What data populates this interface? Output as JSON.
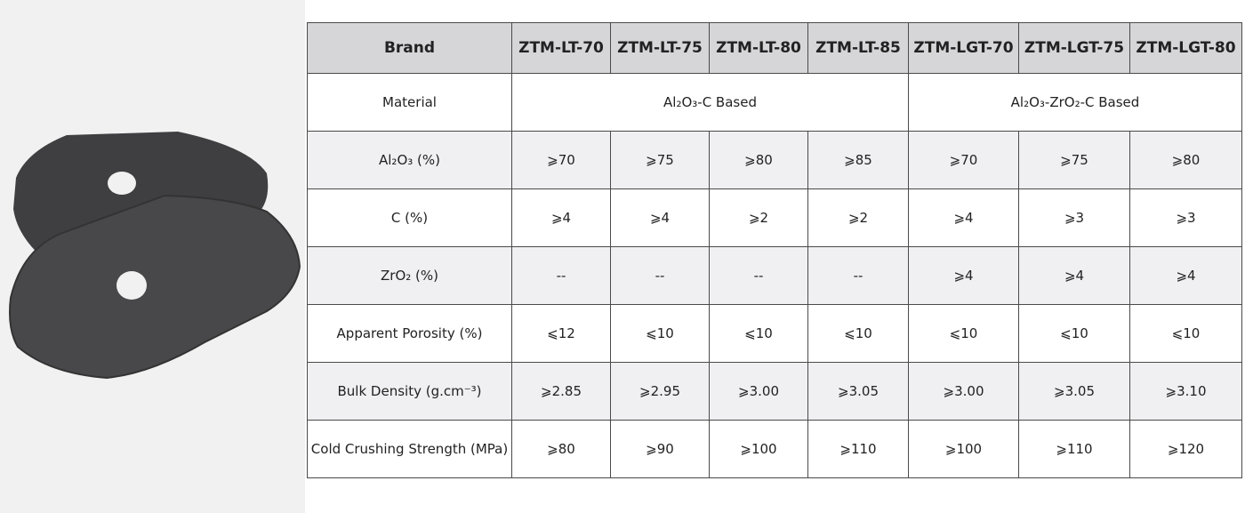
{
  "table": {
    "header": [
      "Brand",
      "ZTM-LT-70",
      "ZTM-LT-75",
      "ZTM-LT-80",
      "ZTM-LT-85",
      "ZTM-LGT-70",
      "ZTM-LGT-75",
      "ZTM-LGT-80"
    ],
    "rows": [
      {
        "label": "Material",
        "cells": [
          "Al₂O₃-C Based",
          "Al₂O₃-ZrO₂-C Based"
        ]
      },
      {
        "label": "Al₂O₃ (%)",
        "cells": [
          "⩾70",
          "⩾75",
          "⩾80",
          "⩾85",
          "⩾70",
          "⩾75",
          "⩾80"
        ]
      },
      {
        "label": "C (%)",
        "cells": [
          "⩾4",
          "⩾4",
          "⩾2",
          "⩾2",
          "⩾4",
          "⩾3",
          "⩾3"
        ]
      },
      {
        "label": "ZrO₂ (%)",
        "cells": [
          "--",
          "--",
          "--",
          "--",
          "⩾4",
          "⩾4",
          "⩾4"
        ]
      },
      {
        "label": "Apparent Porosity (%)",
        "cells": [
          "⩽12",
          "⩽10",
          "⩽10",
          "⩽10",
          "⩽10",
          "⩽10",
          "⩽10"
        ]
      },
      {
        "label": "Bulk Density (g.cm⁻³)",
        "cells": [
          "⩾2.85",
          "⩾2.95",
          "⩾3.00",
          "⩾3.05",
          "⩾3.00",
          "⩾3.05",
          "⩾3.10"
        ]
      },
      {
        "label": "Cold Crushing Strength (MPa)",
        "cells": [
          "⩾80",
          "⩾90",
          "⩾100",
          "⩾110",
          "⩾100",
          "⩾110",
          "⩾120"
        ]
      }
    ]
  }
}
